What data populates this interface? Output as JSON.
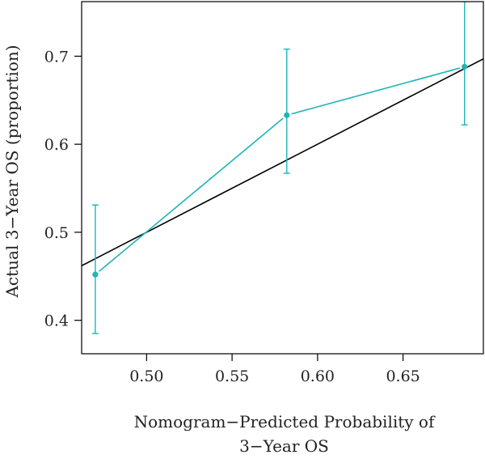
{
  "chart_data": {
    "type": "line",
    "title": "",
    "xlabel_lines": [
      "Nomogram−Predicted Probability of",
      "3−Year OS"
    ],
    "ylabel": "Actual 3−Year OS (proportion)",
    "xlim": [
      0.462,
      0.697
    ],
    "ylim": [
      0.362,
      0.762
    ],
    "x_ticks": [
      {
        "value": 0.5,
        "label": "0.50"
      },
      {
        "value": 0.55,
        "label": "0.55"
      },
      {
        "value": 0.6,
        "label": "0.60"
      },
      {
        "value": 0.65,
        "label": "0.65"
      }
    ],
    "y_ticks": [
      {
        "value": 0.4,
        "label": "0.4"
      },
      {
        "value": 0.5,
        "label": "0.5"
      },
      {
        "value": 0.6,
        "label": "0.6"
      },
      {
        "value": 0.7,
        "label": "0.7"
      }
    ],
    "series": [
      {
        "points": [
          {
            "x": 0.47,
            "y": 0.452,
            "lower": 0.385,
            "upper": 0.531
          },
          {
            "x": 0.582,
            "y": 0.633,
            "lower": 0.567,
            "upper": 0.708
          },
          {
            "x": 0.686,
            "y": 0.688,
            "lower": 0.622,
            "upper": 0.762
          }
        ],
        "color": "#1fb5b5"
      }
    ],
    "reference_line": {
      "from": [
        0.462,
        0.462
      ],
      "to": [
        0.697,
        0.697
      ],
      "color": "#000000"
    },
    "grid": false,
    "legend": "none"
  }
}
